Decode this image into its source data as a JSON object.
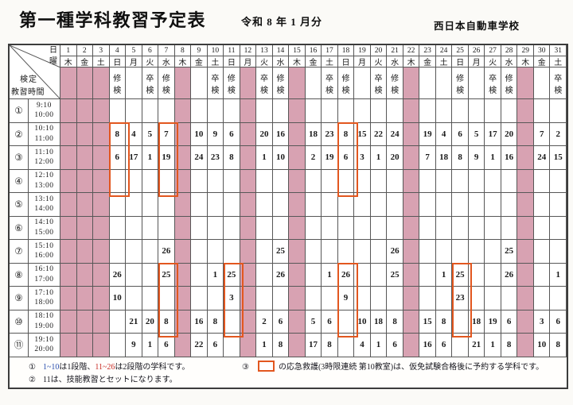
{
  "header": {
    "title": "第一種学科教習予定表",
    "period": "令和 8 年 1 月分",
    "school": "西日本自動車学校"
  },
  "corner": {
    "day_label": "日",
    "weekday_label": "曜",
    "exam_label": "検定",
    "time_label": "教習時間"
  },
  "exam_types": {
    "shu": [
      "修",
      "検"
    ],
    "sotsu": [
      "卒",
      "検"
    ]
  },
  "columns": [
    {
      "day": "1",
      "weekday": "木",
      "holiday": true,
      "exam": ""
    },
    {
      "day": "2",
      "weekday": "金",
      "holiday": true,
      "exam": ""
    },
    {
      "day": "3",
      "weekday": "土",
      "holiday": true,
      "exam": ""
    },
    {
      "day": "4",
      "weekday": "日",
      "holiday": false,
      "exam": "shu"
    },
    {
      "day": "5",
      "weekday": "月",
      "holiday": false,
      "exam": ""
    },
    {
      "day": "6",
      "weekday": "火",
      "holiday": false,
      "exam": "sotsu"
    },
    {
      "day": "7",
      "weekday": "水",
      "holiday": false,
      "exam": "shu"
    },
    {
      "day": "8",
      "weekday": "木",
      "holiday": true,
      "exam": ""
    },
    {
      "day": "9",
      "weekday": "金",
      "holiday": false,
      "exam": ""
    },
    {
      "day": "10",
      "weekday": "土",
      "holiday": false,
      "exam": "sotsu"
    },
    {
      "day": "11",
      "weekday": "日",
      "holiday": false,
      "exam": "shu"
    },
    {
      "day": "12",
      "weekday": "月",
      "holiday": true,
      "exam": ""
    },
    {
      "day": "13",
      "weekday": "火",
      "holiday": false,
      "exam": "sotsu"
    },
    {
      "day": "14",
      "weekday": "水",
      "holiday": false,
      "exam": "shu"
    },
    {
      "day": "15",
      "weekday": "木",
      "holiday": true,
      "exam": ""
    },
    {
      "day": "16",
      "weekday": "金",
      "holiday": false,
      "exam": ""
    },
    {
      "day": "17",
      "weekday": "土",
      "holiday": false,
      "exam": "sotsu"
    },
    {
      "day": "18",
      "weekday": "日",
      "holiday": false,
      "exam": "shu"
    },
    {
      "day": "19",
      "weekday": "月",
      "holiday": false,
      "exam": ""
    },
    {
      "day": "20",
      "weekday": "火",
      "holiday": false,
      "exam": "sotsu"
    },
    {
      "day": "21",
      "weekday": "水",
      "holiday": false,
      "exam": "shu"
    },
    {
      "day": "22",
      "weekday": "木",
      "holiday": true,
      "exam": ""
    },
    {
      "day": "23",
      "weekday": "金",
      "holiday": false,
      "exam": ""
    },
    {
      "day": "24",
      "weekday": "土",
      "holiday": false,
      "exam": ""
    },
    {
      "day": "25",
      "weekday": "日",
      "holiday": false,
      "exam": "shu"
    },
    {
      "day": "26",
      "weekday": "月",
      "holiday": false,
      "exam": ""
    },
    {
      "day": "27",
      "weekday": "火",
      "holiday": false,
      "exam": "sotsu"
    },
    {
      "day": "28",
      "weekday": "水",
      "holiday": false,
      "exam": "shu"
    },
    {
      "day": "29",
      "weekday": "木",
      "holiday": true,
      "exam": ""
    },
    {
      "day": "30",
      "weekday": "金",
      "holiday": false,
      "exam": ""
    },
    {
      "day": "31",
      "weekday": "土",
      "holiday": false,
      "exam": "sotsu"
    }
  ],
  "periods": [
    {
      "no": "①",
      "start": "9:10",
      "end": "10:00"
    },
    {
      "no": "②",
      "start": "10:10",
      "end": "11:00"
    },
    {
      "no": "③",
      "start": "11:10",
      "end": "12:00"
    },
    {
      "no": "④",
      "start": "12:10",
      "end": "13:00"
    },
    {
      "no": "⑤",
      "start": "13:10",
      "end": "14:00"
    },
    {
      "no": "⑥",
      "start": "14:10",
      "end": "15:00"
    },
    {
      "no": "⑦",
      "start": "15:10",
      "end": "16:00"
    },
    {
      "no": "⑧",
      "start": "16:10",
      "end": "17:00"
    },
    {
      "no": "⑨",
      "start": "17:10",
      "end": "18:00"
    },
    {
      "no": "⑩",
      "start": "18:10",
      "end": "19:00"
    },
    {
      "no": "⑪",
      "start": "19:10",
      "end": "20:00"
    }
  ],
  "grid": [
    [
      "",
      "",
      "",
      "",
      "",
      "",
      "",
      "",
      "",
      "",
      "",
      "",
      "",
      "",
      "",
      "",
      "",
      "",
      "",
      "",
      "",
      "",
      "",
      "",
      "",
      "",
      "",
      "",
      "",
      "",
      ""
    ],
    [
      "",
      "",
      "",
      "8",
      "4",
      "5",
      "7",
      "",
      "10",
      "9",
      "6",
      "",
      "20",
      "16",
      "",
      "18",
      "23",
      "8",
      "15",
      "22",
      "24",
      "",
      "19",
      "4",
      "6",
      "5",
      "17",
      "20",
      "",
      "7",
      "2"
    ],
    [
      "",
      "",
      "",
      "6",
      "17",
      "1",
      "19",
      "",
      "24",
      "23",
      "8",
      "",
      "1",
      "10",
      "",
      "2",
      "19",
      "6",
      "3",
      "1",
      "20",
      "",
      "7",
      "18",
      "8",
      "9",
      "1",
      "16",
      "",
      "24",
      "15"
    ],
    [
      "",
      "",
      "",
      "",
      "",
      "",
      "",
      "",
      "",
      "",
      "",
      "",
      "",
      "",
      "",
      "",
      "",
      "",
      "",
      "",
      "",
      "",
      "",
      "",
      "",
      "",
      "",
      "",
      "",
      "",
      ""
    ],
    [
      "",
      "",
      "",
      "",
      "",
      "",
      "",
      "",
      "",
      "",
      "",
      "",
      "",
      "",
      "",
      "",
      "",
      "",
      "",
      "",
      "",
      "",
      "",
      "",
      "",
      "",
      "",
      "",
      "",
      "",
      ""
    ],
    [
      "",
      "",
      "",
      "",
      "",
      "",
      "",
      "",
      "",
      "",
      "",
      "",
      "",
      "",
      "",
      "",
      "",
      "",
      "",
      "",
      "",
      "",
      "",
      "",
      "",
      "",
      "",
      "",
      "",
      "",
      ""
    ],
    [
      "",
      "",
      "",
      "",
      "",
      "",
      "26",
      "",
      "",
      "",
      "",
      "",
      "",
      "25",
      "",
      "",
      "",
      "",
      "",
      "",
      "26",
      "",
      "",
      "",
      "",
      "",
      "",
      "25",
      "",
      "",
      ""
    ],
    [
      "",
      "",
      "",
      "26",
      "",
      "",
      "25",
      "",
      "",
      "1",
      "25",
      "",
      "",
      "26",
      "",
      "",
      "1",
      "26",
      "",
      "",
      "25",
      "",
      "",
      "1",
      "25",
      "",
      "",
      "26",
      "",
      "",
      "1"
    ],
    [
      "",
      "",
      "",
      "10",
      "",
      "",
      "",
      "",
      "",
      "",
      "3",
      "",
      "",
      "",
      "",
      "",
      "",
      "9",
      "",
      "",
      "",
      "",
      "",
      "",
      "23",
      "",
      "",
      "",
      "",
      "",
      ""
    ],
    [
      "",
      "",
      "",
      "",
      "21",
      "20",
      "8",
      "",
      "16",
      "8",
      "",
      "",
      "2",
      "6",
      "",
      "5",
      "6",
      "",
      "10",
      "18",
      "8",
      "",
      "15",
      "8",
      "",
      "18",
      "19",
      "6",
      "",
      "3",
      "6"
    ],
    [
      "",
      "",
      "",
      "",
      "9",
      "1",
      "6",
      "",
      "22",
      "6",
      "",
      "",
      "1",
      "8",
      "",
      "17",
      "8",
      "",
      "4",
      "1",
      "6",
      "",
      "16",
      "6",
      "",
      "21",
      "1",
      "8",
      "",
      "10",
      "8"
    ]
  ],
  "boxes": [
    {
      "col": 4,
      "row_start": 2,
      "row_end": 4
    },
    {
      "col": 7,
      "row_start": 2,
      "row_end": 4
    },
    {
      "col": 18,
      "row_start": 2,
      "row_end": 4
    },
    {
      "col": 7,
      "row_start": 8,
      "row_end": 10
    },
    {
      "col": 11,
      "row_start": 8,
      "row_end": 10
    },
    {
      "col": 18,
      "row_start": 8,
      "row_end": 10
    },
    {
      "col": 25,
      "row_start": 8,
      "row_end": 10
    }
  ],
  "legend": {
    "item1": {
      "marker": "①",
      "stage1": "1~10",
      "mid": "は1段階、",
      "stage2": "11~26",
      "tail": "は2段階の学科です。"
    },
    "item2": {
      "marker": "②",
      "text": "11は、技能教習とセットになります。"
    },
    "item3": {
      "marker": "③",
      "text": "の応急救護(3時限連続 第10教室)は、仮免試験合格後に予約する学科です。"
    }
  },
  "colors": {
    "pink": "#d8a2b2",
    "blue": "#2b4fae",
    "red": "#c92d26",
    "box": "#e2571f"
  }
}
